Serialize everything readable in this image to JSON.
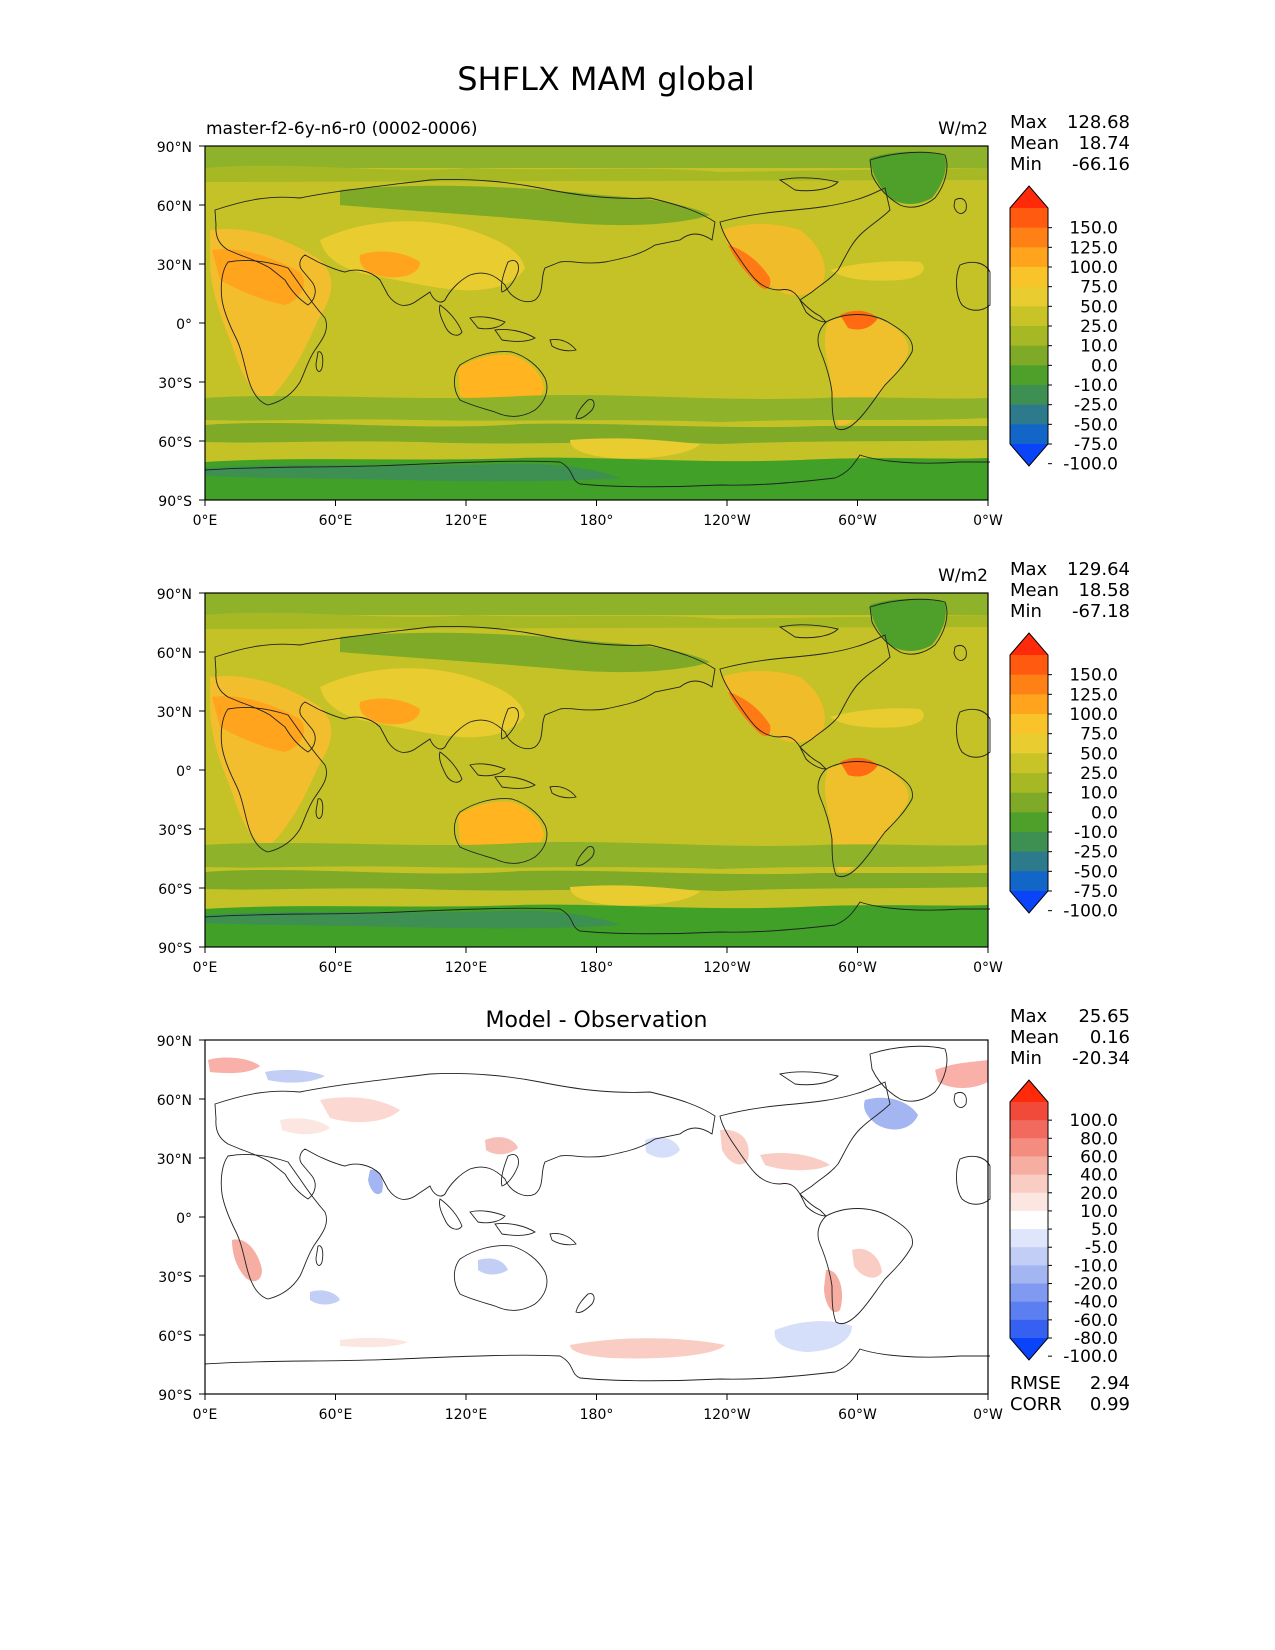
{
  "figure_title": "SHFLX MAM global",
  "x_ticks": [
    "0°E",
    "60°E",
    "120°E",
    "180°",
    "120°W",
    "60°W",
    "0°W"
  ],
  "y_ticks": [
    "90°N",
    "60°N",
    "30°N",
    "0°",
    "30°S",
    "60°S",
    "90°S"
  ],
  "stat_labels": {
    "max": "Max",
    "mean": "Mean",
    "min": "Min",
    "rmse": "RMSE",
    "corr": "CORR"
  },
  "panels": [
    {
      "left_title": "master-f2-6y-n6-r0 (0002-0006)",
      "center_title": "",
      "units": "W/m2",
      "stats": {
        "max": "128.68",
        "mean": "18.74",
        "min": "-66.16"
      },
      "colorbar": {
        "levels": [
          "150.0",
          "125.0",
          "100.0",
          "75.0",
          "50.0",
          "25.0",
          "10.0",
          "0.0",
          "-10.0",
          "-25.0",
          "-50.0",
          "-75.0",
          "-100.0"
        ],
        "colors": [
          "#ff2a0a",
          "#ff5a10",
          "#ff8014",
          "#ffa41c",
          "#f8c42a",
          "#e9cc30",
          "#c8c428",
          "#a6b824",
          "#7eaa28",
          "#4ea02a",
          "#3d8f52",
          "#2c7a8c",
          "#1166c8",
          "#0a44f8"
        ]
      }
    },
    {
      "left_title": "",
      "center_title": "",
      "units": "W/m2",
      "stats": {
        "max": "129.64",
        "mean": "18.58",
        "min": "-67.18"
      },
      "colorbar": {
        "levels": [
          "150.0",
          "125.0",
          "100.0",
          "75.0",
          "50.0",
          "25.0",
          "10.0",
          "0.0",
          "-10.0",
          "-25.0",
          "-50.0",
          "-75.0",
          "-100.0"
        ],
        "colors": [
          "#ff2a0a",
          "#ff5a10",
          "#ff8014",
          "#ffa41c",
          "#f8c42a",
          "#e9cc30",
          "#c8c428",
          "#a6b824",
          "#7eaa28",
          "#4ea02a",
          "#3d8f52",
          "#2c7a8c",
          "#1166c8",
          "#0a44f8"
        ]
      }
    },
    {
      "left_title": "",
      "center_title": "Model - Observation",
      "units": "",
      "stats": {
        "max": "25.65",
        "mean": "0.16",
        "min": "-20.34"
      },
      "extra_stats": {
        "rmse": "2.94",
        "corr": "0.99"
      },
      "colorbar": {
        "levels": [
          "100.0",
          "80.0",
          "60.0",
          "40.0",
          "20.0",
          "10.0",
          "5.0",
          "-5.0",
          "-10.0",
          "-20.0",
          "-40.0",
          "-60.0",
          "-80.0",
          "-100.0"
        ],
        "colors": [
          "#ff2a0a",
          "#f24a3a",
          "#f26a5e",
          "#f48c80",
          "#f6ada2",
          "#f9cdc4",
          "#fce6e2",
          "#ffffff",
          "#dfe6fb",
          "#c2cef6",
          "#a4b6f2",
          "#7f9af0",
          "#5b7ff0",
          "#3560f2",
          "#0a44f8"
        ]
      }
    }
  ]
}
